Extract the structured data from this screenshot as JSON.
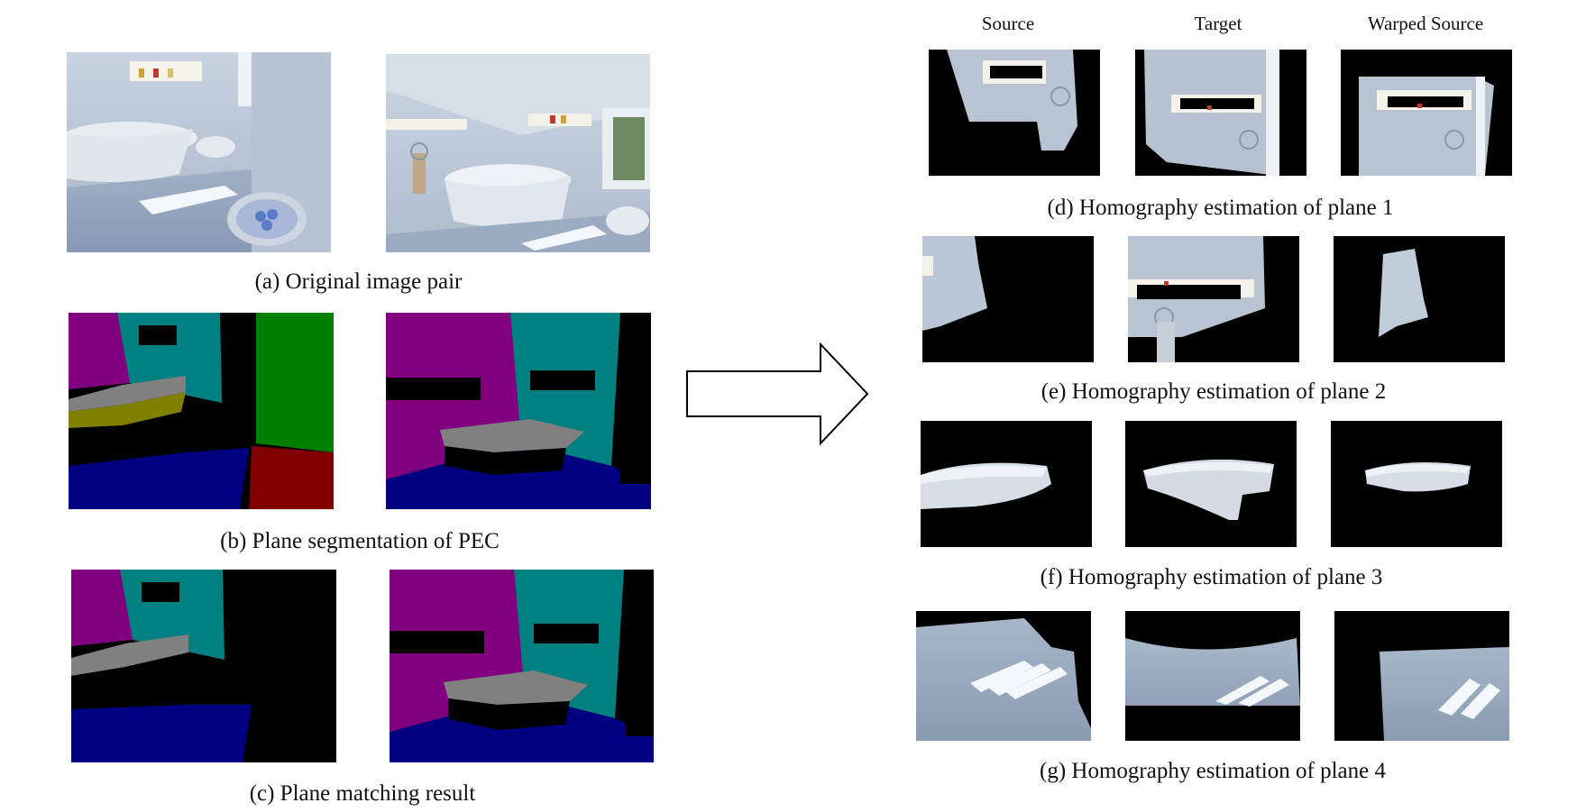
{
  "figure": {
    "left_captions": {
      "a": "(a) Original image pair",
      "b": "(b) Plane segmentation of PEC",
      "c": "(c) Plane matching result"
    },
    "column_headers": [
      "Source",
      "Target",
      "Warped Source"
    ],
    "right_captions": {
      "d": "(d) Homography estimation of plane 1",
      "e": "(e) Homography estimation of plane 2",
      "f": "(f) Homography estimation of plane 3",
      "g": "(g) Homography estimation of plane 4"
    },
    "segment_colors": {
      "magenta": "#800080",
      "teal": "#008080",
      "green": "#008000",
      "navy": "#000080",
      "red": "#800000",
      "olive": "#808000",
      "gray": "#808080",
      "black": "#000000"
    }
  }
}
